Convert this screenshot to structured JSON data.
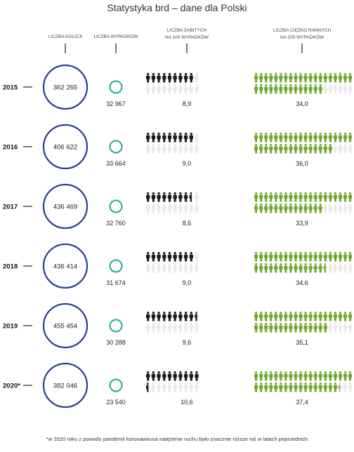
{
  "title": "Statystyka brd – dane dla Polski",
  "columns": {
    "collisions": "LICZBA KOLIZJI",
    "accidents": "LICZBA WYPADKÓW",
    "killed_line1": "LICZBA ZABITYCH",
    "killed_line2": "NA 100 WYPADKÓW",
    "injured_line1": "LICZBA CIĘŻKO RANNYCH",
    "injured_line2": "NA 100 WYPADKÓW"
  },
  "colors": {
    "collision_ring": "#2b3f8f",
    "accident_ring": "#26a79a",
    "killed_icon": "#1a1a1a",
    "injured_icon": "#6fa82f",
    "inactive_icon": "#e9e9e9"
  },
  "chart_data": {
    "type": "table",
    "title": "Statystyka brd – dane dla Polski",
    "rows": [
      {
        "year": "2015",
        "collisions": "362 265",
        "accidents": "32 967",
        "killed_per_100": "8,9",
        "injured_per_100": "34,0",
        "killed_value": 8.9,
        "injured_value": 34.0
      },
      {
        "year": "2016",
        "collisions": "406 622",
        "accidents": "33 664",
        "killed_per_100": "9,0",
        "injured_per_100": "36,0",
        "killed_value": 9.0,
        "injured_value": 36.0
      },
      {
        "year": "2017",
        "collisions": "436 469",
        "accidents": "32 760",
        "killed_per_100": "8,6",
        "injured_per_100": "33,9",
        "killed_value": 8.6,
        "injured_value": 33.9
      },
      {
        "year": "2018",
        "collisions": "436 414",
        "accidents": "31 674",
        "killed_per_100": "9,0",
        "injured_per_100": "34,6",
        "killed_value": 9.0,
        "injured_value": 34.6
      },
      {
        "year": "2019",
        "collisions": "455 454",
        "accidents": "30 288",
        "killed_per_100": "9,6",
        "injured_per_100": "35,1",
        "killed_value": 9.6,
        "injured_value": 35.1
      },
      {
        "year": "2020*",
        "collisions": "382 046",
        "accidents": "23 540",
        "killed_per_100": "10,6",
        "injured_per_100": "37,4",
        "killed_value": 10.6,
        "injured_value": 37.4
      }
    ]
  },
  "footnote": "*w 2020 roku z powodu pandemii koronawirusa natężenie ruchu było znacznie niższe niż w latach poprzednich"
}
